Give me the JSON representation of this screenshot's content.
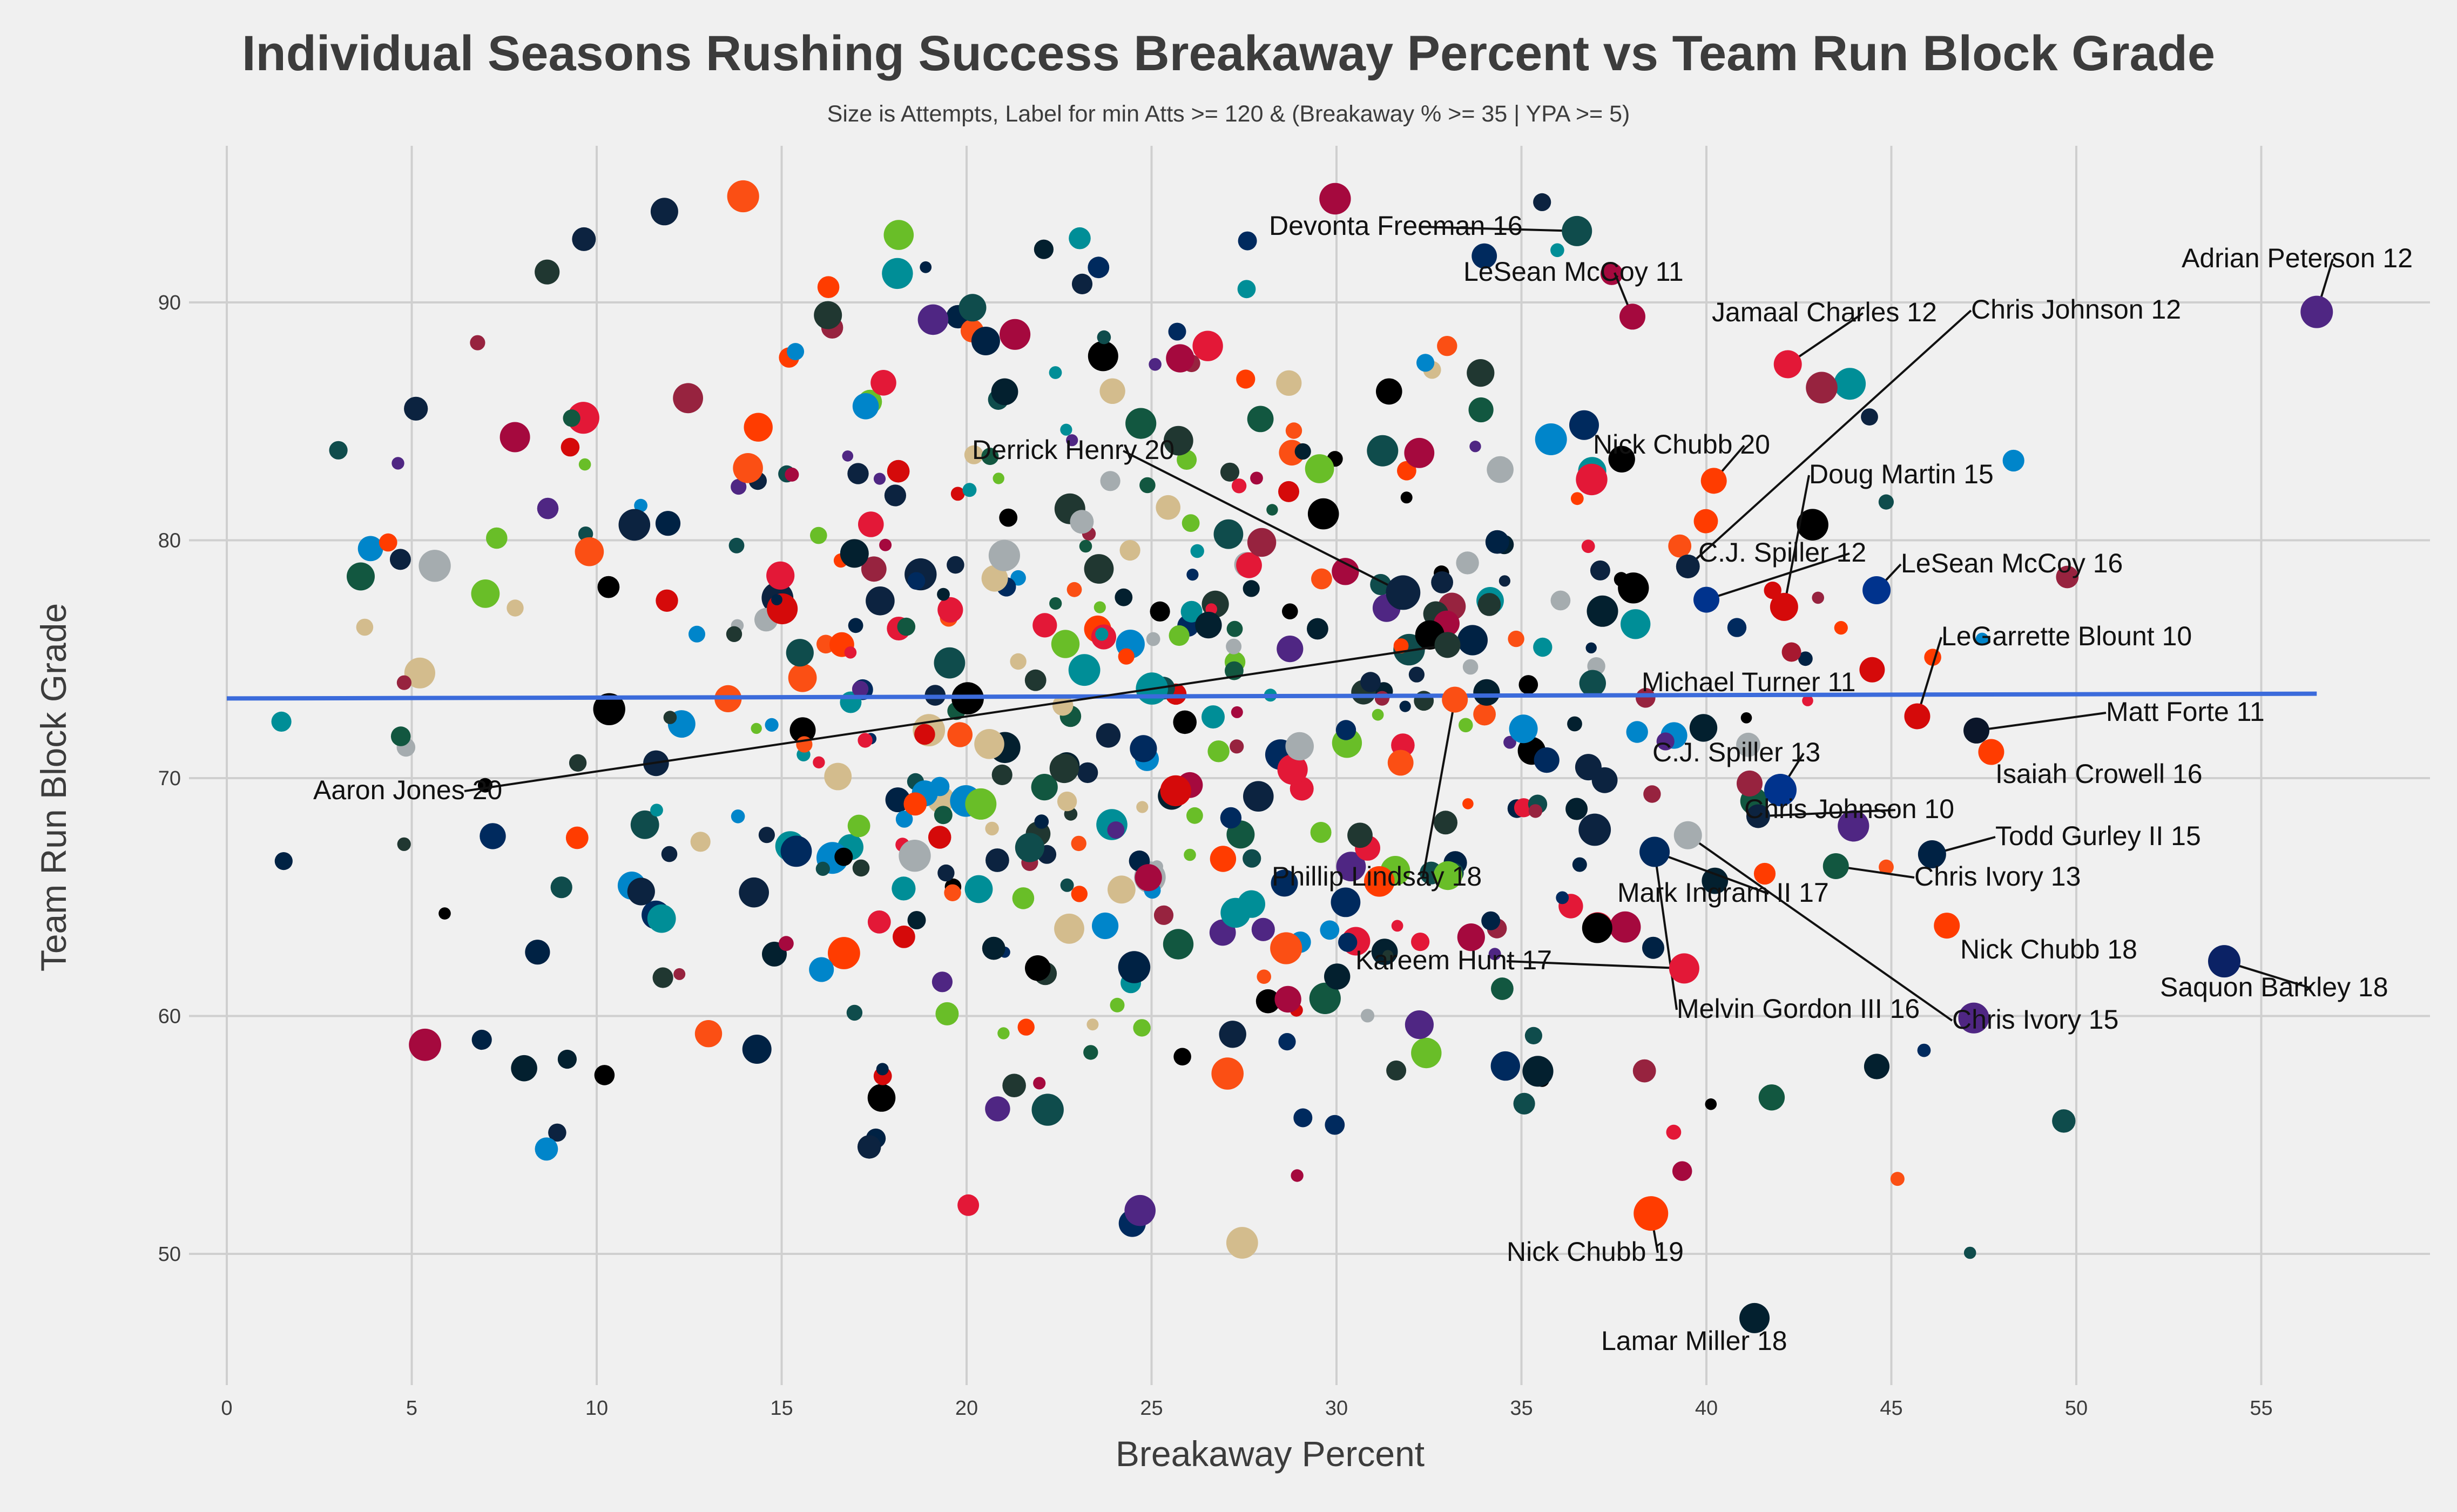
{
  "chart_data": {
    "type": "scatter",
    "title": "Individual Seasons Rushing Success Breakaway Percent vs Team Run Block Grade",
    "subtitle": "Size is Attempts, Label for min Atts >= 120 & (Breakaway % >= 35 | YPA >= 5)",
    "xlabel": "Breakaway Percent",
    "ylabel": "Team Run Block Grade",
    "xlim": [
      -5,
      60
    ],
    "ylim": [
      44,
      96
    ],
    "xticks": [
      0,
      5,
      10,
      15,
      20,
      25,
      30,
      35,
      40,
      45,
      50,
      55
    ],
    "yticks": [
      50,
      60,
      70,
      80,
      90
    ],
    "grid": true,
    "trend_line": {
      "x": [
        0,
        56.5
      ],
      "y": [
        73.35,
        73.55
      ],
      "color": "#3b6bdb"
    },
    "labeled_points": [
      {
        "label": "Adrian Peterson 12",
        "x": 56.5,
        "y": 89.6,
        "size": 30,
        "color": "#4f2683"
      },
      {
        "label": "Devonta Freeman 16",
        "x": 36.5,
        "y": 93.0,
        "size": 28,
        "color": "#0f4c4c"
      },
      {
        "label": "LeSean McCoy 11",
        "x": 38.0,
        "y": 89.4,
        "size": 24,
        "color": "#a5093e"
      },
      {
        "label": "Jamaal Charles 12",
        "x": 42.2,
        "y": 87.4,
        "size": 26,
        "color": "#e31837"
      },
      {
        "label": "Chris Johnson 12",
        "x": 39.5,
        "y": 78.9,
        "size": 22,
        "color": "#0c2340"
      },
      {
        "label": "Nick Chubb 20",
        "x": 40.2,
        "y": 82.5,
        "size": 24,
        "color": "#ff3c00"
      },
      {
        "label": "Derrick Henry 20",
        "x": 31.8,
        "y": 77.8,
        "size": 32,
        "color": "#0c2340"
      },
      {
        "label": "Doug Martin 15",
        "x": 42.1,
        "y": 77.2,
        "size": 26,
        "color": "#d50a0a"
      },
      {
        "label": "C.J. Spiller 12",
        "x": 40.0,
        "y": 77.5,
        "size": 24,
        "color": "#00338d"
      },
      {
        "label": "LeSean McCoy 16",
        "x": 44.6,
        "y": 77.9,
        "size": 26,
        "color": "#00338d"
      },
      {
        "label": "LeGarrette Blount 10",
        "x": 45.7,
        "y": 72.6,
        "size": 24,
        "color": "#d50a0a"
      },
      {
        "label": "Michael Turner 11",
        "x": 42.3,
        "y": 75.3,
        "size": 18,
        "color": "#a71930"
      },
      {
        "label": "Matt Forte 11",
        "x": 47.3,
        "y": 72.0,
        "size": 24,
        "color": "#0b162a"
      },
      {
        "label": "Isaiah Crowell 16",
        "x": 47.7,
        "y": 71.1,
        "size": 24,
        "color": "#ff3c00"
      },
      {
        "label": "Aaron Jones 20",
        "x": 33.0,
        "y": 75.6,
        "size": 24,
        "color": "#203731"
      },
      {
        "label": "C.J. Spiller 13",
        "x": 42.0,
        "y": 69.5,
        "size": 30,
        "color": "#00338d"
      },
      {
        "label": "Chris Johnson 10",
        "x": 41.4,
        "y": 68.4,
        "size": 22,
        "color": "#0c2340"
      },
      {
        "label": "Todd Gurley II 15",
        "x": 46.1,
        "y": 66.8,
        "size": 26,
        "color": "#002244"
      },
      {
        "label": "Chris Ivory 13",
        "x": 43.5,
        "y": 66.3,
        "size": 24,
        "color": "#125740"
      },
      {
        "label": "Phillip Lindsay 18",
        "x": 33.2,
        "y": 73.3,
        "size": 24,
        "color": "#fb4f14"
      },
      {
        "label": "Mark Ingram II 17",
        "x": 38.6,
        "y": 66.9,
        "size": 26,
        "color": "#d3bc8d"
      },
      {
        "label": "Nick Chubb 18",
        "x": 46.5,
        "y": 63.8,
        "size": 24,
        "color": "#ff3c00"
      },
      {
        "label": "Kareem Hunt 17",
        "x": 39.4,
        "y": 62.0,
        "size": 28,
        "color": "#e31837"
      },
      {
        "label": "Melvin Gordon III 16",
        "x": 38.6,
        "y": 66.9,
        "size": 28,
        "color": "#002a5e"
      },
      {
        "label": "Chris Ivory 15",
        "x": 39.5,
        "y": 67.6,
        "size": 26,
        "color": "#a5acaf"
      },
      {
        "label": "Saquon Barkley 18",
        "x": 54.0,
        "y": 62.3,
        "size": 30,
        "color": "#0b2265"
      },
      {
        "label": "Nick Chubb 19",
        "x": 38.5,
        "y": 51.7,
        "size": 32,
        "color": "#ff3c00"
      },
      {
        "label": "Lamar Miller 18",
        "x": 41.3,
        "y": 47.3,
        "size": 28,
        "color": "#03202f"
      }
    ]
  }
}
